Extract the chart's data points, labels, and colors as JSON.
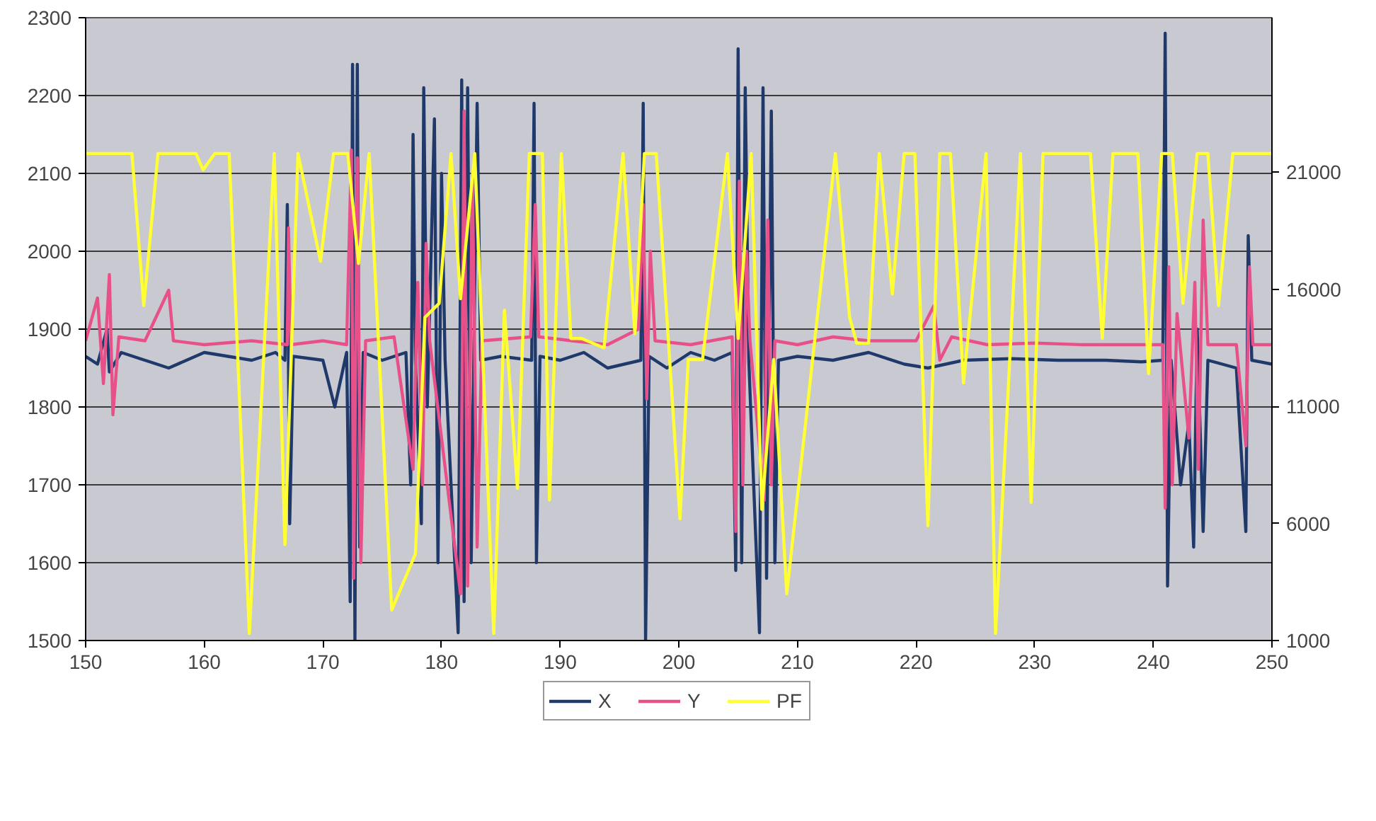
{
  "chart_data": {
    "type": "line",
    "xlim": [
      150,
      250
    ],
    "xticks": [
      150,
      160,
      170,
      180,
      190,
      200,
      210,
      220,
      230,
      240,
      250
    ],
    "ylim": [
      1500,
      2300
    ],
    "yticks": [
      1500,
      1600,
      1700,
      1800,
      1900,
      2000,
      2100,
      2200,
      2300
    ],
    "y2lim": [
      1000,
      27600
    ],
    "y2ticks": [
      1000,
      6000,
      11000,
      16000,
      21000
    ],
    "grid": "y",
    "legend": "bottom",
    "marker": "none",
    "line_style": "solid",
    "series": [
      {
        "name": "X",
        "color": "#1f3a6a",
        "x": [
          150,
          151,
          151.8,
          152,
          153,
          155,
          157,
          160,
          162,
          164,
          166,
          166.8,
          167,
          167.2,
          167.5,
          170,
          171,
          172,
          172.3,
          172.5,
          172.7,
          172.9,
          173.1,
          173.4,
          175,
          177,
          177.4,
          177.6,
          177.8,
          178.3,
          178.5,
          178.8,
          179.4,
          179.7,
          180,
          180.3,
          181.4,
          181.7,
          181.9,
          182.2,
          182.5,
          183,
          183.3,
          185,
          187.6,
          187.8,
          188,
          188.3,
          190,
          192,
          194,
          196.8,
          197,
          197.2,
          197.5,
          199,
          201,
          203,
          204.5,
          204.8,
          205,
          205.3,
          205.6,
          205.9,
          206.8,
          207.1,
          207.4,
          207.8,
          208.1,
          208.4,
          210,
          213,
          216,
          219,
          221,
          224,
          228,
          232,
          236,
          239,
          240.8,
          241,
          241.2,
          241.5,
          242.3,
          243,
          243.4,
          243.7,
          244.2,
          244.6,
          247,
          247.8,
          248,
          248.3,
          250
        ],
        "values": [
          1865,
          1855,
          1900,
          1845,
          1870,
          1860,
          1850,
          1870,
          1865,
          1860,
          1870,
          1860,
          2060,
          1650,
          1865,
          1860,
          1800,
          1870,
          1550,
          2240,
          1500,
          2240,
          1620,
          1870,
          1860,
          1870,
          1700,
          2150,
          1860,
          1650,
          2210,
          1800,
          2170,
          1600,
          2100,
          1860,
          1510,
          2220,
          1550,
          2210,
          1600,
          2190,
          1860,
          1865,
          1860,
          2190,
          1600,
          1865,
          1860,
          1870,
          1850,
          1860,
          2190,
          1500,
          1865,
          1850,
          1870,
          1860,
          1870,
          1590,
          2260,
          1600,
          2210,
          1860,
          1510,
          2210,
          1580,
          2180,
          1600,
          1860,
          1865,
          1860,
          1870,
          1855,
          1850,
          1860,
          1862,
          1860,
          1860,
          1858,
          1860,
          2280,
          1570,
          1860,
          1700,
          1780,
          1620,
          1900,
          1640,
          1860,
          1850,
          1640,
          2020,
          1860,
          1855
        ]
      },
      {
        "name": "Y",
        "color": "#e8508a",
        "x": [
          150,
          151,
          151.5,
          152,
          152.3,
          152.8,
          155,
          157,
          157.4,
          160,
          164,
          167,
          167.1,
          167.3,
          170,
          172,
          172.4,
          172.6,
          172.9,
          173.2,
          173.6,
          176,
          177.6,
          178,
          178.4,
          178.7,
          179,
          181.6,
          181.9,
          182.2,
          182.6,
          183,
          183.4,
          187.5,
          187.9,
          188.2,
          191,
          194,
          196.6,
          197,
          197.3,
          197.6,
          198,
          201,
          204.5,
          204.8,
          205.1,
          205.4,
          205.7,
          206,
          207.2,
          207.5,
          207.8,
          208.1,
          210,
          213,
          216,
          220,
          221.5,
          222,
          223,
          226,
          230,
          234,
          238,
          240.8,
          241,
          241.3,
          241.6,
          242,
          243,
          243.5,
          243.8,
          244.2,
          244.6,
          247,
          247.8,
          248.1,
          248.4,
          250
        ],
        "values": [
          1885,
          1940,
          1830,
          1970,
          1790,
          1890,
          1885,
          1950,
          1885,
          1880,
          1885,
          1880,
          2030,
          1880,
          1885,
          1880,
          2130,
          1580,
          2120,
          1600,
          1885,
          1890,
          1720,
          1960,
          1700,
          2010,
          1885,
          1560,
          2180,
          1570,
          2100,
          1620,
          1885,
          1890,
          2060,
          1890,
          1885,
          1880,
          1900,
          2060,
          1810,
          2000,
          1885,
          1880,
          1890,
          1640,
          2090,
          1700,
          2000,
          1885,
          1680,
          2040,
          1700,
          1885,
          1880,
          1890,
          1885,
          1885,
          1930,
          1860,
          1890,
          1880,
          1882,
          1880,
          1880,
          1880,
          1670,
          1980,
          1700,
          1920,
          1760,
          1960,
          1720,
          2040,
          1880,
          1880,
          1750,
          1980,
          1880,
          1880
        ]
      },
      {
        "name": "PF",
        "color": "#ffff33",
        "axis": "y2",
        "x": [
          150,
          153.9,
          154.9,
          156.1,
          159.3,
          159.9,
          160.9,
          162.1,
          163.8,
          165.9,
          166.8,
          167.9,
          169.8,
          170.9,
          172.1,
          173.0,
          173.9,
          175.8,
          177.8,
          178.6,
          179.8,
          180.8,
          181.6,
          182.8,
          184.4,
          185.3,
          186.4,
          187.4,
          188.5,
          189.1,
          190.1,
          190.9,
          191.8,
          193.7,
          195.3,
          196.3,
          197.1,
          198.1,
          200.1,
          200.8,
          202.0,
          204.1,
          205.0,
          206.1,
          207.0,
          208.0,
          209.1,
          213.2,
          214.4,
          215.0,
          216.0,
          216.9,
          218.0,
          219.0,
          219.9,
          221.0,
          222.0,
          222.9,
          224.0,
          225.9,
          226.7,
          228.8,
          229.7,
          230.7,
          234.7,
          235.7,
          236.6,
          238.7,
          239.6,
          240.7,
          241.6,
          242.5,
          243.7,
          244.6,
          245.5,
          246.7,
          248.2,
          250
        ],
        "values": [
          21800,
          21800,
          15300,
          21800,
          21800,
          21100,
          21800,
          21800,
          1300,
          21800,
          5100,
          21800,
          17200,
          21800,
          21800,
          17100,
          21800,
          2300,
          4700,
          14800,
          15400,
          21800,
          15600,
          21800,
          1300,
          15100,
          7500,
          21800,
          21800,
          7000,
          21800,
          13900,
          13900,
          13500,
          21800,
          14100,
          21800,
          21800,
          6200,
          13000,
          13000,
          21800,
          13900,
          21800,
          6600,
          13000,
          3000,
          21800,
          14800,
          13700,
          13700,
          21800,
          15800,
          21800,
          21800,
          5900,
          21800,
          21800,
          12000,
          21800,
          1300,
          21800,
          6900,
          21800,
          21800,
          13900,
          21800,
          21800,
          12400,
          21800,
          21800,
          15400,
          21800,
          21800,
          15300,
          21800,
          21800,
          21800
        ]
      }
    ]
  }
}
